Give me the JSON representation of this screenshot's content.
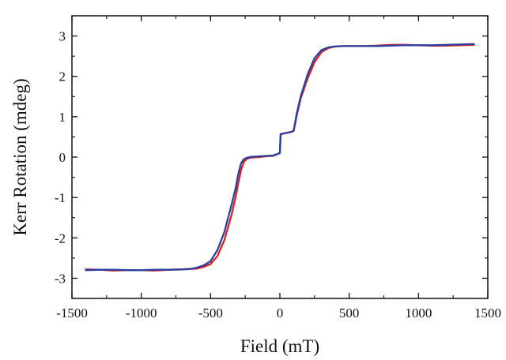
{
  "chart_data": {
    "type": "line",
    "xlabel": "Field (mT)",
    "ylabel": "Kerr Rotation (mdeg)",
    "xlim": [
      -1500,
      1500
    ],
    "ylim": [
      -3.5,
      3.5
    ],
    "xticks": [
      -1500,
      -1000,
      -500,
      0,
      500,
      1000,
      1500
    ],
    "yticks": [
      -3,
      -2,
      -1,
      0,
      1,
      2,
      3
    ],
    "grid": false,
    "legend": "none",
    "series": [
      {
        "color": "#e02020",
        "x": [
          -1400,
          -1300,
          -1200,
          -1100,
          -1000,
          -900,
          -800,
          -700,
          -650,
          -600,
          -550,
          -500,
          -450,
          -400,
          -350,
          -320,
          -300,
          -280,
          -260,
          -240,
          -220,
          -200,
          -150,
          -100,
          -50,
          0,
          5,
          20,
          50,
          80,
          100,
          120,
          150,
          200,
          250,
          300,
          350,
          400,
          450,
          500,
          600,
          700,
          800,
          900,
          1000,
          1100,
          1200,
          1300,
          1400
        ],
        "y": [
          -2.78,
          -2.79,
          -2.81,
          -2.8,
          -2.8,
          -2.81,
          -2.79,
          -2.78,
          -2.77,
          -2.76,
          -2.72,
          -2.65,
          -2.45,
          -2.05,
          -1.45,
          -1.0,
          -0.65,
          -0.32,
          -0.12,
          -0.05,
          -0.02,
          -0.01,
          0.0,
          0.02,
          0.03,
          0.1,
          0.55,
          0.58,
          0.6,
          0.62,
          0.65,
          1.0,
          1.45,
          1.95,
          2.35,
          2.6,
          2.7,
          2.74,
          2.75,
          2.75,
          2.75,
          2.76,
          2.78,
          2.78,
          2.77,
          2.76,
          2.76,
          2.77,
          2.78
        ]
      },
      {
        "color": "#2a3f9e",
        "x": [
          -1400,
          -1300,
          -1200,
          -1100,
          -1000,
          -900,
          -800,
          -700,
          -650,
          -600,
          -550,
          -500,
          -450,
          -400,
          -350,
          -320,
          -300,
          -280,
          -260,
          -240,
          -220,
          -200,
          -150,
          -100,
          -50,
          0,
          5,
          20,
          50,
          80,
          100,
          120,
          150,
          200,
          250,
          300,
          350,
          400,
          450,
          500,
          600,
          700,
          800,
          900,
          1000,
          1100,
          1200,
          1300,
          1400
        ],
        "y": [
          -2.8,
          -2.79,
          -2.79,
          -2.8,
          -2.8,
          -2.79,
          -2.79,
          -2.78,
          -2.77,
          -2.74,
          -2.68,
          -2.58,
          -2.3,
          -1.85,
          -1.2,
          -0.78,
          -0.42,
          -0.15,
          -0.05,
          -0.02,
          0.0,
          0.01,
          0.02,
          0.03,
          0.04,
          0.1,
          0.57,
          0.58,
          0.6,
          0.62,
          0.66,
          1.05,
          1.5,
          2.05,
          2.45,
          2.65,
          2.72,
          2.74,
          2.75,
          2.75,
          2.75,
          2.75,
          2.76,
          2.77,
          2.77,
          2.77,
          2.78,
          2.79,
          2.8
        ]
      }
    ]
  }
}
